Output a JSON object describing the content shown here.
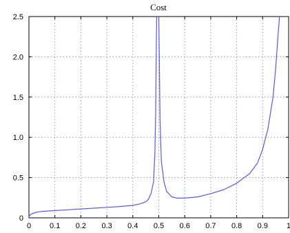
{
  "chart_data": {
    "type": "line",
    "title": "Cost",
    "xlabel": "",
    "ylabel": "",
    "xlim": [
      0,
      1
    ],
    "ylim": [
      0,
      2.5
    ],
    "xticks": [
      "0",
      "0.1",
      "0.2",
      "0.3",
      "0.4",
      "0.5",
      "0.6",
      "0.7",
      "0.8",
      "0.9",
      "1"
    ],
    "yticks": [
      "0",
      "0.5",
      "1.0",
      "1.5",
      "2.0",
      "2.5"
    ],
    "grid": true,
    "line_color": "#5555ff",
    "series": [
      {
        "x": [
          0.0,
          0.01,
          0.02,
          0.03,
          0.05,
          0.1,
          0.15,
          0.2,
          0.25,
          0.3,
          0.35,
          0.4,
          0.43,
          0.45,
          0.46,
          0.47,
          0.48,
          0.485,
          0.488,
          0.49,
          0.492
        ],
        "y": [
          0.02,
          0.05,
          0.06,
          0.07,
          0.08,
          0.09,
          0.1,
          0.11,
          0.12,
          0.13,
          0.14,
          0.155,
          0.175,
          0.2,
          0.23,
          0.3,
          0.45,
          0.8,
          1.3,
          2.0,
          2.5
        ]
      },
      {
        "x": [
          0.5,
          0.502,
          0.505,
          0.51,
          0.52,
          0.53,
          0.55,
          0.57,
          0.6,
          0.65,
          0.7,
          0.75,
          0.8,
          0.85,
          0.88,
          0.9,
          0.92,
          0.94,
          0.95,
          0.96,
          0.965
        ],
        "y": [
          2.5,
          2.0,
          1.2,
          0.7,
          0.45,
          0.33,
          0.26,
          0.245,
          0.245,
          0.26,
          0.3,
          0.35,
          0.43,
          0.55,
          0.68,
          0.85,
          1.1,
          1.5,
          1.85,
          2.3,
          2.5
        ]
      }
    ]
  }
}
